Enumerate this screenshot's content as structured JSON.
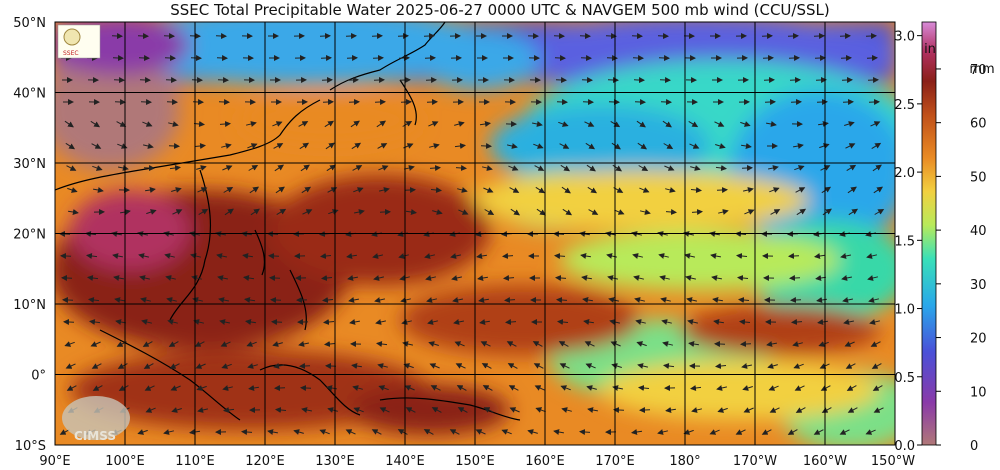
{
  "title": "SSEC Total Precipitable Water  2025-06-27 0000 UTC & NAVGEM 500 mb wind (CCU/SSL)",
  "lat_labels": [
    "50°N",
    "40°N",
    "30°N",
    "20°N",
    "10°N",
    "0°",
    "10°S"
  ],
  "lon_labels": [
    "90°E",
    "100°E",
    "110°E",
    "120°E",
    "130°E",
    "140°E",
    "150°E",
    "160°E",
    "170°E",
    "180°",
    "170°W",
    "160°W",
    "150°W"
  ],
  "colorbar": {
    "inch_unit": "in",
    "mm_unit": "mm",
    "inch_ticks": [
      "3.0",
      "2.5",
      "2.0",
      "1.5",
      "1.0",
      "0.5",
      "0.0"
    ],
    "mm_ticks": [
      "70",
      "60",
      "50",
      "40",
      "30",
      "20",
      "10",
      "0"
    ],
    "colors": [
      "#b07878",
      "#8a3aa8",
      "#4a50d8",
      "#29a7ea",
      "#39e0b8",
      "#b8ea5a",
      "#f2d040",
      "#e98a24",
      "#c0501a",
      "#8a2018",
      "#b03060",
      "#d88bd8"
    ]
  },
  "logos": {
    "top_left_text": "SSEC",
    "bottom_left_text": "CIMSS"
  },
  "colors": {
    "dry": "#b07878",
    "moist": "#e98a24",
    "very_moist": "#8a2018",
    "grid": "#000000"
  }
}
